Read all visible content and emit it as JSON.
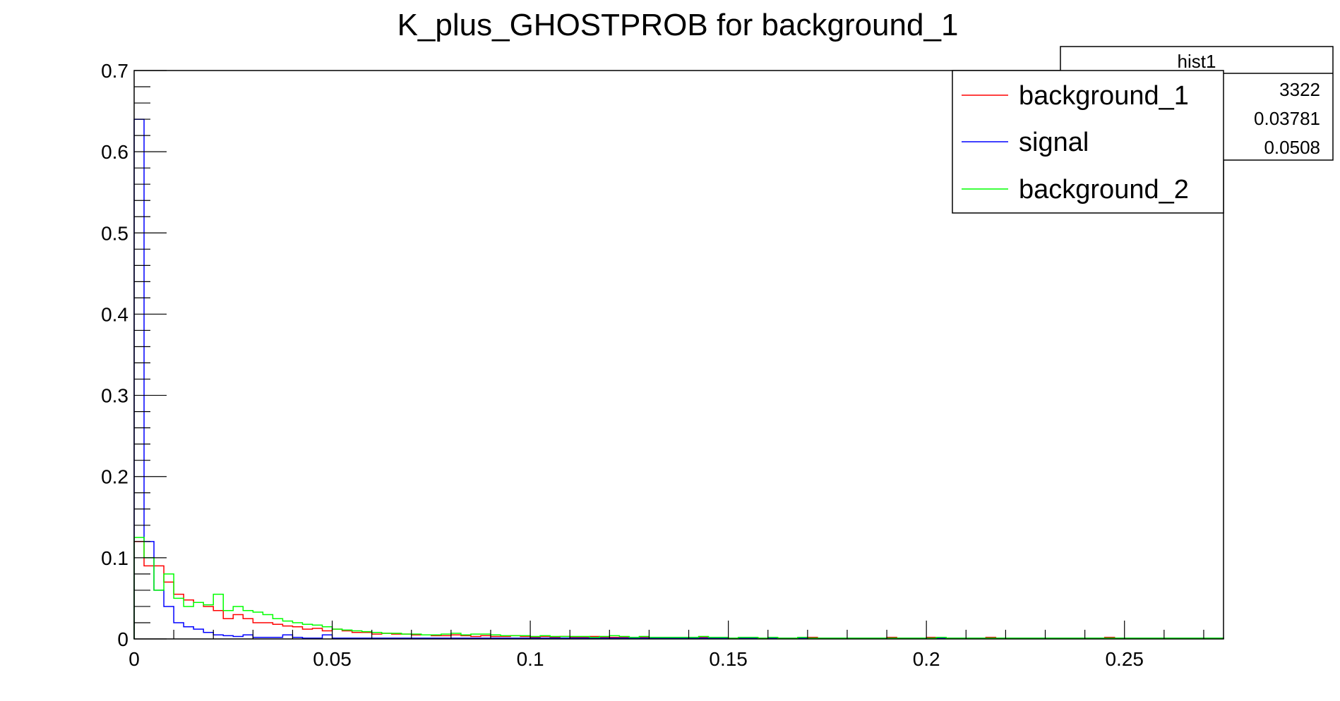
{
  "chart_data": {
    "type": "step-histogram",
    "title": "K_plus_GHOSTPROB for background_1",
    "xlabel": "",
    "ylabel": "",
    "xlim": [
      0,
      0.275
    ],
    "ylim": [
      0,
      0.7
    ],
    "x_ticks": [
      "0",
      "0.05",
      "0.1",
      "0.15",
      "0.2",
      "0.25"
    ],
    "y_ticks": [
      "0",
      "0.1",
      "0.2",
      "0.3",
      "0.4",
      "0.5",
      "0.6",
      "0.7"
    ],
    "bin_width": 0.0025,
    "grid": false,
    "legend_position": "top-right",
    "stats_box": {
      "name": "hist1",
      "values": [
        "3322",
        "0.03781",
        "0.0508"
      ]
    },
    "series": [
      {
        "name": "background_1",
        "color": "#ff0000",
        "values": [
          0.12,
          0.09,
          0.09,
          0.07,
          0.055,
          0.048,
          0.045,
          0.04,
          0.035,
          0.025,
          0.03,
          0.025,
          0.02,
          0.02,
          0.018,
          0.016,
          0.015,
          0.012,
          0.013,
          0.01,
          0.012,
          0.01,
          0.008,
          0.008,
          0.006,
          0.007,
          0.006,
          0.006,
          0.005,
          0.005,
          0.004,
          0.004,
          0.005,
          0.004,
          0.003,
          0.004,
          0.003,
          0.003,
          0.004,
          0.003,
          0.002,
          0.003,
          0.002,
          0.003,
          0.002,
          0.002,
          0.003,
          0.002,
          0.002,
          0.002,
          0.001,
          0.002,
          0.002,
          0.001,
          0.002,
          0.001,
          0.001,
          0.002,
          0.001,
          0.001,
          0.001,
          0.001,
          0.002,
          0.001,
          0.001,
          0.001,
          0.001,
          0.001,
          0.002,
          0.001,
          0.001,
          0.001,
          0.001,
          0.001,
          0.001,
          0.001,
          0.002,
          0.001,
          0.001,
          0.001,
          0.002,
          0.001,
          0.001,
          0.001,
          0.001,
          0.001,
          0.002,
          0.001,
          0.001,
          0.001,
          0.001,
          0.001,
          0.001,
          0.001,
          0.001,
          0.001,
          0.001,
          0.001,
          0.002,
          0.001,
          0.001,
          0.001,
          0.001,
          0.001,
          0.001,
          0.001,
          0.001,
          0.001,
          0.001,
          0.001
        ]
      },
      {
        "name": "signal",
        "color": "#0000ff",
        "values": [
          0.64,
          0.12,
          0.06,
          0.04,
          0.02,
          0.015,
          0.012,
          0.008,
          0.005,
          0.004,
          0.003,
          0.005,
          0.002,
          0.002,
          0.002,
          0.005,
          0.002,
          0.001,
          0.001,
          0.005,
          0.001,
          0.001,
          0.001,
          0.001,
          0.001,
          0.001,
          0.001,
          0.001,
          0.001,
          0.001,
          0.001,
          0.001,
          0.001,
          0.001,
          0.001,
          0.001,
          0.001,
          0.001,
          0.001,
          0.001,
          0.001,
          0.001,
          0.001,
          0.001,
          0.001,
          0.001,
          0.001,
          0.001,
          0.001,
          0.001,
          0.001,
          0.001,
          0.001,
          0.001,
          0.001,
          0.001,
          0.001,
          0.001,
          0.001,
          0.001,
          0.001,
          0.001,
          0.001,
          0.001,
          0.001,
          0.001,
          0.001,
          0.001,
          0.001,
          0.001,
          0.001,
          0.001,
          0.001,
          0.001,
          0.001,
          0.001,
          0.001,
          0.001,
          0.001,
          0.001,
          0.001,
          0.001,
          0.001,
          0.001,
          0.001,
          0.001,
          0.001,
          0.001,
          0.001,
          0.001,
          0.001,
          0.001,
          0.001,
          0.001,
          0.001,
          0.001,
          0.001,
          0.001,
          0.001,
          0.001,
          0.001,
          0.001,
          0.001,
          0.001,
          0.001,
          0.001,
          0.001,
          0.001,
          0.001,
          0.001
        ]
      },
      {
        "name": "background_2",
        "color": "#00ff00",
        "values": [
          0.125,
          0.1,
          0.06,
          0.08,
          0.05,
          0.04,
          0.045,
          0.042,
          0.055,
          0.035,
          0.04,
          0.035,
          0.033,
          0.03,
          0.025,
          0.022,
          0.02,
          0.018,
          0.017,
          0.015,
          0.012,
          0.011,
          0.01,
          0.009,
          0.008,
          0.007,
          0.007,
          0.006,
          0.006,
          0.005,
          0.005,
          0.006,
          0.007,
          0.005,
          0.006,
          0.006,
          0.005,
          0.004,
          0.004,
          0.004,
          0.003,
          0.004,
          0.003,
          0.003,
          0.003,
          0.003,
          0.002,
          0.003,
          0.004,
          0.003,
          0.002,
          0.003,
          0.002,
          0.002,
          0.002,
          0.002,
          0.002,
          0.003,
          0.002,
          0.002,
          0.001,
          0.002,
          0.002,
          0.001,
          0.002,
          0.001,
          0.001,
          0.002,
          0.001,
          0.001,
          0.001,
          0.001,
          0.001,
          0.001,
          0.001,
          0.001,
          0.001,
          0.001,
          0.001,
          0.001,
          0.001,
          0.002,
          0.001,
          0.001,
          0.001,
          0.001,
          0.001,
          0.001,
          0.001,
          0.001,
          0.001,
          0.001,
          0.001,
          0.001,
          0.001,
          0.001,
          0.001,
          0.001,
          0.001,
          0.001,
          0.001,
          0.001,
          0.001,
          0.001,
          0.001,
          0.001,
          0.001,
          0.001,
          0.001,
          0.001
        ]
      }
    ]
  }
}
